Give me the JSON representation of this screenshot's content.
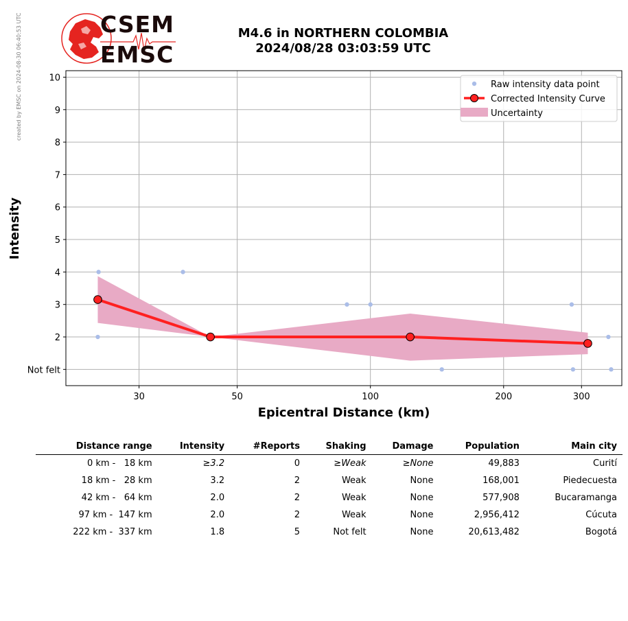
{
  "credit": "created by EMSC on 2024-08-30 06:40:53 UTC",
  "logo": {
    "line1": "CSEM",
    "line2": "EMSC"
  },
  "title": {
    "line1": "M4.6 in NORTHERN COLOMBIA",
    "line2": "2024/08/28 03:03:59 UTC"
  },
  "chart_data": {
    "type": "line",
    "xlabel": "Epicentral Distance (km)",
    "ylabel": "Intensity",
    "xscale": "log",
    "xlim": [
      20.5,
      370
    ],
    "ylim": [
      0.5,
      10.2
    ],
    "xticks": [
      30,
      50,
      100,
      200,
      300
    ],
    "yticks": [
      1,
      2,
      3,
      4,
      5,
      6,
      7,
      8,
      9,
      10
    ],
    "ytick_labels": [
      "Not felt",
      "2",
      "3",
      "4",
      "5",
      "6",
      "7",
      "8",
      "9",
      "10"
    ],
    "grid": true,
    "legend_position": "top-right",
    "legend": [
      "Raw intensity data point",
      "Corrected Intensity Curve",
      "Uncertainty"
    ],
    "colors": {
      "raw": "#aabde8",
      "curve": "#ff2020",
      "marker": "#ff2020",
      "band": "#e8aac5"
    },
    "raw_points": [
      {
        "x": 24.3,
        "y": 4
      },
      {
        "x": 24.2,
        "y": 2
      },
      {
        "x": 37.7,
        "y": 4
      },
      {
        "x": 88.5,
        "y": 3
      },
      {
        "x": 100,
        "y": 3
      },
      {
        "x": 145,
        "y": 1
      },
      {
        "x": 285,
        "y": 3
      },
      {
        "x": 287,
        "y": 1
      },
      {
        "x": 345,
        "y": 2
      },
      {
        "x": 350,
        "y": 1
      }
    ],
    "curve": [
      {
        "x": 24.2,
        "y": 3.15
      },
      {
        "x": 43.5,
        "y": 2.0
      },
      {
        "x": 123,
        "y": 2.0
      },
      {
        "x": 310,
        "y": 1.8
      }
    ],
    "band": {
      "x": [
        24.2,
        43.5,
        123,
        310
      ],
      "upper": [
        3.87,
        2.0,
        2.72,
        2.13
      ],
      "lower": [
        2.43,
        2.0,
        1.27,
        1.47
      ]
    }
  },
  "table": {
    "headers": [
      "Distance range",
      "Intensity",
      "#Reports",
      "Shaking",
      "Damage",
      "Population",
      "Main city"
    ],
    "rows": [
      {
        "range": "0 km -   18 km",
        "intensity": "≥3.2",
        "reports": "0",
        "shaking": "≥Weak",
        "damage": "≥None",
        "population": "49,883",
        "city": "Curití"
      },
      {
        "range": "18 km -   28 km",
        "intensity": "3.2",
        "reports": "2",
        "shaking": "Weak",
        "damage": "None",
        "population": "168,001",
        "city": "Piedecuesta"
      },
      {
        "range": "42 km -   64 km",
        "intensity": "2.0",
        "reports": "2",
        "shaking": "Weak",
        "damage": "None",
        "population": "577,908",
        "city": "Bucaramanga"
      },
      {
        "range": "97 km -  147 km",
        "intensity": "2.0",
        "reports": "2",
        "shaking": "Weak",
        "damage": "None",
        "population": "2,956,412",
        "city": "Cúcuta"
      },
      {
        "range": "222 km -  337 km",
        "intensity": "1.8",
        "reports": "5",
        "shaking": "Not felt",
        "damage": "None",
        "population": "20,613,482",
        "city": "Bogotá"
      }
    ]
  }
}
